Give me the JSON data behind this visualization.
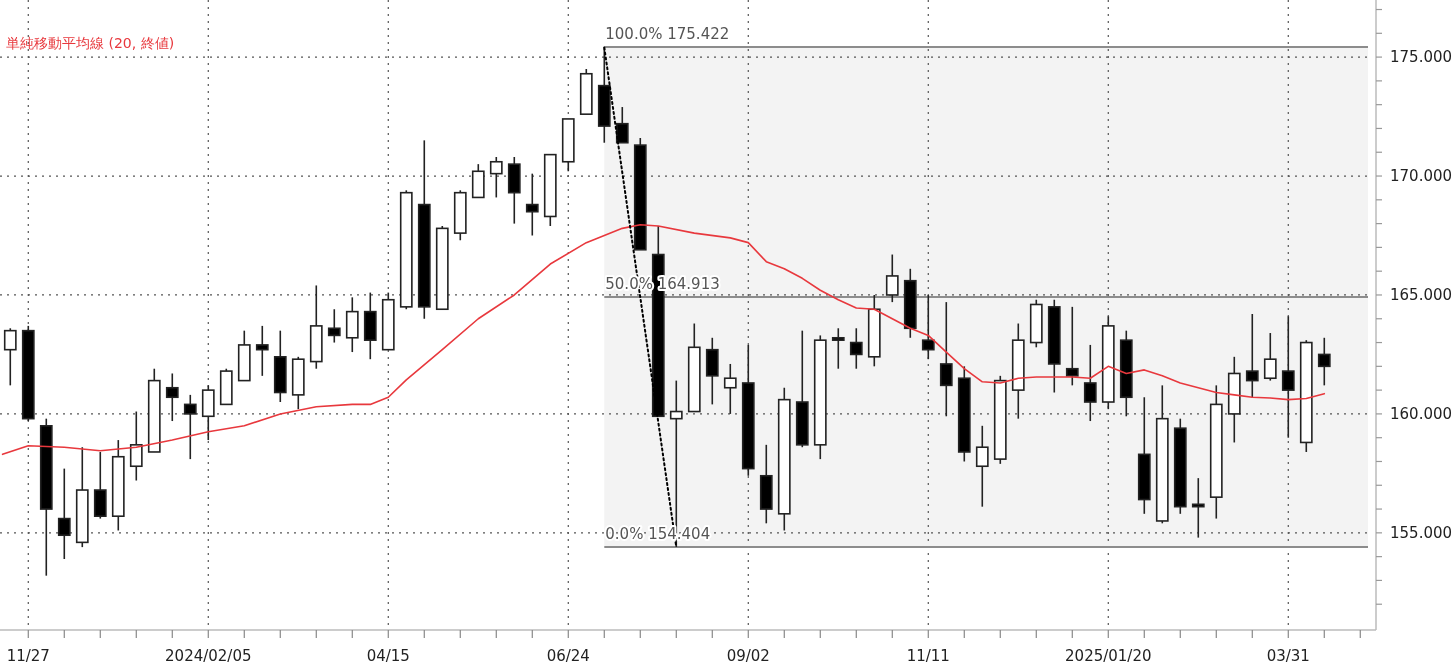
{
  "chart_data": {
    "type": "candlestick",
    "x": [
      "2023-11-20",
      "2023-11-27",
      "2023-12-04",
      "2023-12-11",
      "2023-12-18",
      "2023-12-25",
      "2024-01-01",
      "2024-01-08",
      "2024-01-15",
      "2024-01-22",
      "2024-01-29",
      "2024-02-05",
      "2024-02-12",
      "2024-02-19",
      "2024-02-26",
      "2024-03-04",
      "2024-03-11",
      "2024-03-18",
      "2024-03-25",
      "2024-04-01",
      "2024-04-08",
      "2024-04-15",
      "2024-04-22",
      "2024-04-29",
      "2024-05-06",
      "2024-05-13",
      "2024-05-20",
      "2024-05-27",
      "2024-06-03",
      "2024-06-10",
      "2024-06-17",
      "2024-06-24",
      "2024-07-01",
      "2024-07-08",
      "2024-07-15",
      "2024-07-22",
      "2024-07-29",
      "2024-08-05",
      "2024-08-12",
      "2024-08-19",
      "2024-08-26",
      "2024-09-02",
      "2024-09-09",
      "2024-09-16",
      "2024-09-23",
      "2024-09-30",
      "2024-10-07",
      "2024-10-14",
      "2024-10-21",
      "2024-10-28",
      "2024-11-04",
      "2024-11-11",
      "2024-11-18",
      "2024-11-25",
      "2024-12-02",
      "2024-12-09",
      "2024-12-16",
      "2024-12-23",
      "2024-12-30",
      "2025-01-06",
      "2025-01-13",
      "2025-01-20",
      "2025-01-27",
      "2025-02-03",
      "2025-02-10",
      "2025-02-17",
      "2025-02-24",
      "2025-03-03",
      "2025-03-10",
      "2025-03-17",
      "2025-03-24",
      "2025-03-31",
      "2025-04-07",
      "2025-04-14"
    ],
    "ohlc": [
      [
        162.7,
        163.6,
        161.2,
        163.5
      ],
      [
        163.5,
        163.7,
        159.7,
        159.8
      ],
      [
        159.5,
        159.8,
        153.2,
        156.0
      ],
      [
        155.6,
        157.7,
        153.9,
        154.9
      ],
      [
        154.6,
        158.6,
        154.4,
        156.8
      ],
      [
        156.8,
        158.4,
        155.6,
        155.7
      ],
      [
        155.7,
        158.9,
        155.1,
        158.2
      ],
      [
        157.8,
        160.1,
        157.2,
        158.7
      ],
      [
        158.4,
        161.9,
        158.4,
        161.4
      ],
      [
        161.1,
        161.7,
        159.7,
        160.7
      ],
      [
        160.4,
        160.8,
        158.1,
        160.0
      ],
      [
        159.9,
        161.2,
        158.9,
        161.0
      ],
      [
        160.4,
        161.9,
        160.4,
        161.8
      ],
      [
        161.4,
        163.5,
        161.4,
        162.9
      ],
      [
        162.9,
        163.7,
        161.6,
        162.7
      ],
      [
        162.4,
        163.5,
        160.5,
        160.9
      ],
      [
        160.8,
        162.4,
        160.2,
        162.3
      ],
      [
        162.2,
        165.4,
        161.9,
        163.7
      ],
      [
        163.6,
        164.4,
        163.0,
        163.3
      ],
      [
        163.2,
        164.9,
        162.6,
        164.3
      ],
      [
        164.3,
        165.1,
        162.3,
        163.1
      ],
      [
        162.7,
        165.1,
        162.7,
        164.8
      ],
      [
        164.5,
        169.4,
        164.4,
        169.3
      ],
      [
        168.8,
        171.5,
        164.0,
        164.5
      ],
      [
        164.4,
        167.9,
        164.4,
        167.8
      ],
      [
        167.6,
        169.4,
        167.3,
        169.3
      ],
      [
        169.1,
        170.5,
        169.1,
        170.2
      ],
      [
        170.1,
        170.8,
        169.1,
        170.6
      ],
      [
        170.5,
        170.8,
        168.0,
        169.3
      ],
      [
        168.8,
        170.1,
        167.5,
        168.5
      ],
      [
        168.3,
        170.9,
        167.9,
        170.9
      ],
      [
        170.6,
        172.4,
        170.2,
        172.4
      ],
      [
        172.6,
        174.5,
        172.6,
        174.3
      ],
      [
        173.8,
        175.422,
        171.4,
        172.1
      ],
      [
        172.2,
        172.9,
        171.4,
        171.4
      ],
      [
        171.3,
        171.6,
        166.9,
        166.9
      ],
      [
        166.7,
        167.9,
        159.9,
        159.9
      ],
      [
        159.8,
        161.4,
        154.404,
        160.1
      ],
      [
        160.1,
        163.8,
        160.1,
        162.8
      ],
      [
        162.7,
        163.2,
        160.4,
        161.6
      ],
      [
        161.1,
        162.1,
        160.0,
        161.5
      ],
      [
        161.3,
        162.9,
        157.4,
        157.7
      ],
      [
        157.4,
        158.7,
        155.4,
        156.0
      ],
      [
        155.8,
        161.1,
        155.1,
        160.6
      ],
      [
        160.5,
        163.5,
        158.6,
        158.7
      ],
      [
        158.7,
        163.3,
        158.1,
        163.1
      ],
      [
        163.2,
        163.6,
        161.9,
        163.1
      ],
      [
        163.0,
        163.6,
        161.9,
        162.5
      ],
      [
        162.4,
        165.0,
        162.0,
        164.4
      ],
      [
        165.0,
        166.7,
        164.7,
        165.8
      ],
      [
        165.6,
        166.1,
        163.2,
        163.6
      ],
      [
        163.1,
        165.0,
        162.3,
        162.7
      ],
      [
        162.1,
        164.7,
        159.9,
        161.2
      ],
      [
        161.5,
        162.0,
        158.0,
        158.4
      ],
      [
        157.8,
        159.5,
        156.1,
        158.6
      ],
      [
        158.1,
        161.6,
        157.9,
        161.4
      ],
      [
        161.0,
        163.8,
        159.8,
        163.1
      ],
      [
        163.0,
        164.8,
        162.8,
        164.6
      ],
      [
        164.5,
        164.8,
        160.9,
        162.1
      ],
      [
        161.9,
        164.5,
        161.2,
        161.6
      ],
      [
        161.3,
        162.9,
        159.7,
        160.5
      ],
      [
        160.5,
        164.1,
        160.2,
        163.7
      ],
      [
        163.1,
        163.5,
        159.9,
        160.7
      ],
      [
        158.3,
        160.7,
        155.8,
        156.4
      ],
      [
        155.5,
        161.2,
        155.4,
        159.8
      ],
      [
        159.4,
        159.8,
        155.8,
        156.1
      ],
      [
        156.2,
        157.3,
        154.8,
        156.1
      ],
      [
        156.5,
        161.2,
        155.6,
        160.4
      ],
      [
        160.0,
        162.4,
        158.8,
        161.7
      ],
      [
        161.8,
        164.2,
        160.7,
        161.4
      ],
      [
        161.5,
        163.4,
        161.4,
        162.3
      ],
      [
        161.8,
        164.1,
        159.0,
        161.0
      ],
      [
        158.8,
        163.1,
        158.4,
        163.0
      ],
      [
        162.5,
        163.2,
        161.2,
        162.0
      ]
    ],
    "series": [
      {
        "type": "line",
        "name": "単純移動平均線 (20, 終値)",
        "color": "#e8383d",
        "x": [
          "2023-11-17",
          "2023-11-27",
          "2023-12-11",
          "2023-12-25",
          "2024-01-08",
          "2024-01-22",
          "2024-02-05",
          "2024-02-19",
          "2024-03-04",
          "2024-03-18",
          "2024-04-01",
          "2024-04-08",
          "2024-04-15",
          "2024-04-22",
          "2024-05-06",
          "2024-05-20",
          "2024-06-03",
          "2024-06-17",
          "2024-07-01",
          "2024-07-15",
          "2024-07-22",
          "2024-07-29",
          "2024-08-12",
          "2024-08-26",
          "2024-09-02",
          "2024-09-09",
          "2024-09-16",
          "2024-09-23",
          "2024-09-30",
          "2024-10-07",
          "2024-10-14",
          "2024-10-21",
          "2024-10-28",
          "2024-11-04",
          "2024-11-11",
          "2024-11-18",
          "2024-11-25",
          "2024-12-02",
          "2024-12-09",
          "2024-12-16",
          "2024-12-23",
          "2024-12-30",
          "2025-01-06",
          "2025-01-13",
          "2025-01-20",
          "2025-01-27",
          "2025-02-03",
          "2025-02-10",
          "2025-02-17",
          "2025-02-24",
          "2025-03-03",
          "2025-03-10",
          "2025-03-17",
          "2025-03-24",
          "2025-03-31",
          "2025-04-07",
          "2025-04-14"
        ],
        "values": [
          158.3,
          158.66,
          158.6,
          158.45,
          158.6,
          158.9,
          159.25,
          159.5,
          160.0,
          160.3,
          160.4,
          160.4,
          160.7,
          161.43,
          162.7,
          164.0,
          165.0,
          166.3,
          167.2,
          167.8,
          167.95,
          167.9,
          167.6,
          167.4,
          167.2,
          166.4,
          166.1,
          165.7,
          165.2,
          164.8,
          164.45,
          164.4,
          164.0,
          163.6,
          163.3,
          162.6,
          161.9,
          161.35,
          161.3,
          161.5,
          161.55,
          161.55,
          161.55,
          161.5,
          162.0,
          161.7,
          161.85,
          161.6,
          161.3,
          161.1,
          160.9,
          160.8,
          160.7,
          160.67,
          160.6,
          160.65,
          160.85
        ]
      },
      {
        "type": "line",
        "color": "#000000",
        "line_style": "dotted",
        "x": [
          "2024-07-08",
          "2024-08-05"
        ],
        "values": [
          175.4,
          154.4
        ]
      }
    ],
    "ref_lines": [
      {
        "axis": "y",
        "value": 175.422,
        "label": "100.0% 175.422",
        "color": "#8c8c8c"
      },
      {
        "axis": "y",
        "value": 164.913,
        "label": "50.0% 164.913",
        "color": "#8c8c8c"
      },
      {
        "axis": "y",
        "value": 154.404,
        "label": "0.0% 154.404",
        "color": "#8c8c8c"
      }
    ],
    "bands": [
      {
        "axis": "y",
        "from": 154.404,
        "to": 175.422,
        "color": "#f3f3f3"
      }
    ],
    "xlim": [
      "2023-11-16",
      "2025-05-01"
    ],
    "ylim": [
      151,
      177.4
    ],
    "xticks": [
      {
        "value": "2023-11-27",
        "label": "11/27"
      },
      {
        "value": "2023-12-11",
        "label": null
      },
      {
        "value": "2023-12-25",
        "label": null
      },
      {
        "value": "2024-01-08",
        "label": null
      },
      {
        "value": "2024-01-22",
        "label": null
      },
      {
        "value": "2024-02-05",
        "label": "2024/02/05"
      },
      {
        "value": "2024-02-19",
        "label": null
      },
      {
        "value": "2024-03-04",
        "label": null
      },
      {
        "value": "2024-03-18",
        "label": null
      },
      {
        "value": "2024-04-01",
        "label": null
      },
      {
        "value": "2024-04-15",
        "label": "04/15"
      },
      {
        "value": "2024-04-29",
        "label": null
      },
      {
        "value": "2024-05-13",
        "label": null
      },
      {
        "value": "2024-05-27",
        "label": null
      },
      {
        "value": "2024-06-10",
        "label": null
      },
      {
        "value": "2024-06-24",
        "label": "06/24"
      },
      {
        "value": "2024-07-08",
        "label": null
      },
      {
        "value": "2024-07-22",
        "label": null
      },
      {
        "value": "2024-08-05",
        "label": null
      },
      {
        "value": "2024-08-19",
        "label": null
      },
      {
        "value": "2024-09-02",
        "label": "09/02"
      },
      {
        "value": "2024-09-16",
        "label": null
      },
      {
        "value": "2024-09-30",
        "label": null
      },
      {
        "value": "2024-10-14",
        "label": null
      },
      {
        "value": "2024-10-28",
        "label": null
      },
      {
        "value": "2024-11-11",
        "label": "11/11"
      },
      {
        "value": "2024-11-25",
        "label": null
      },
      {
        "value": "2024-12-09",
        "label": null
      },
      {
        "value": "2024-12-23",
        "label": null
      },
      {
        "value": "2025-01-06",
        "label": null
      },
      {
        "value": "2025-01-20",
        "label": "2025/01/20"
      },
      {
        "value": "2025-02-03",
        "label": null
      },
      {
        "value": "2025-02-17",
        "label": null
      },
      {
        "value": "2025-03-03",
        "label": null
      },
      {
        "value": "2025-03-17",
        "label": null
      },
      {
        "value": "2025-03-31",
        "label": "03/31"
      },
      {
        "value": "2025-04-14",
        "label": null
      },
      {
        "value": "2025-04-28",
        "label": null
      }
    ],
    "yticks": [
      {
        "value": 152,
        "label": null
      },
      {
        "value": 153,
        "label": null
      },
      {
        "value": 154,
        "label": null
      },
      {
        "value": 155,
        "label": "155.000"
      },
      {
        "value": 156,
        "label": null
      },
      {
        "value": 157,
        "label": null
      },
      {
        "value": 158,
        "label": null
      },
      {
        "value": 159,
        "label": null
      },
      {
        "value": 160,
        "label": "160.000"
      },
      {
        "value": 161,
        "label": null
      },
      {
        "value": 162,
        "label": null
      },
      {
        "value": 163,
        "label": null
      },
      {
        "value": 164,
        "label": null
      },
      {
        "value": 165,
        "label": "165.000"
      },
      {
        "value": 166,
        "label": null
      },
      {
        "value": 167,
        "label": null
      },
      {
        "value": 168,
        "label": null
      },
      {
        "value": 169,
        "label": null
      },
      {
        "value": 170,
        "label": "170.000"
      },
      {
        "value": 171,
        "label": null
      },
      {
        "value": 172,
        "label": null
      },
      {
        "value": 173,
        "label": null
      },
      {
        "value": 174,
        "label": null
      },
      {
        "value": 175,
        "label": "175.000"
      },
      {
        "value": 176,
        "label": null
      },
      {
        "value": 177,
        "label": null
      }
    ],
    "grid": true,
    "legend": "top left"
  }
}
